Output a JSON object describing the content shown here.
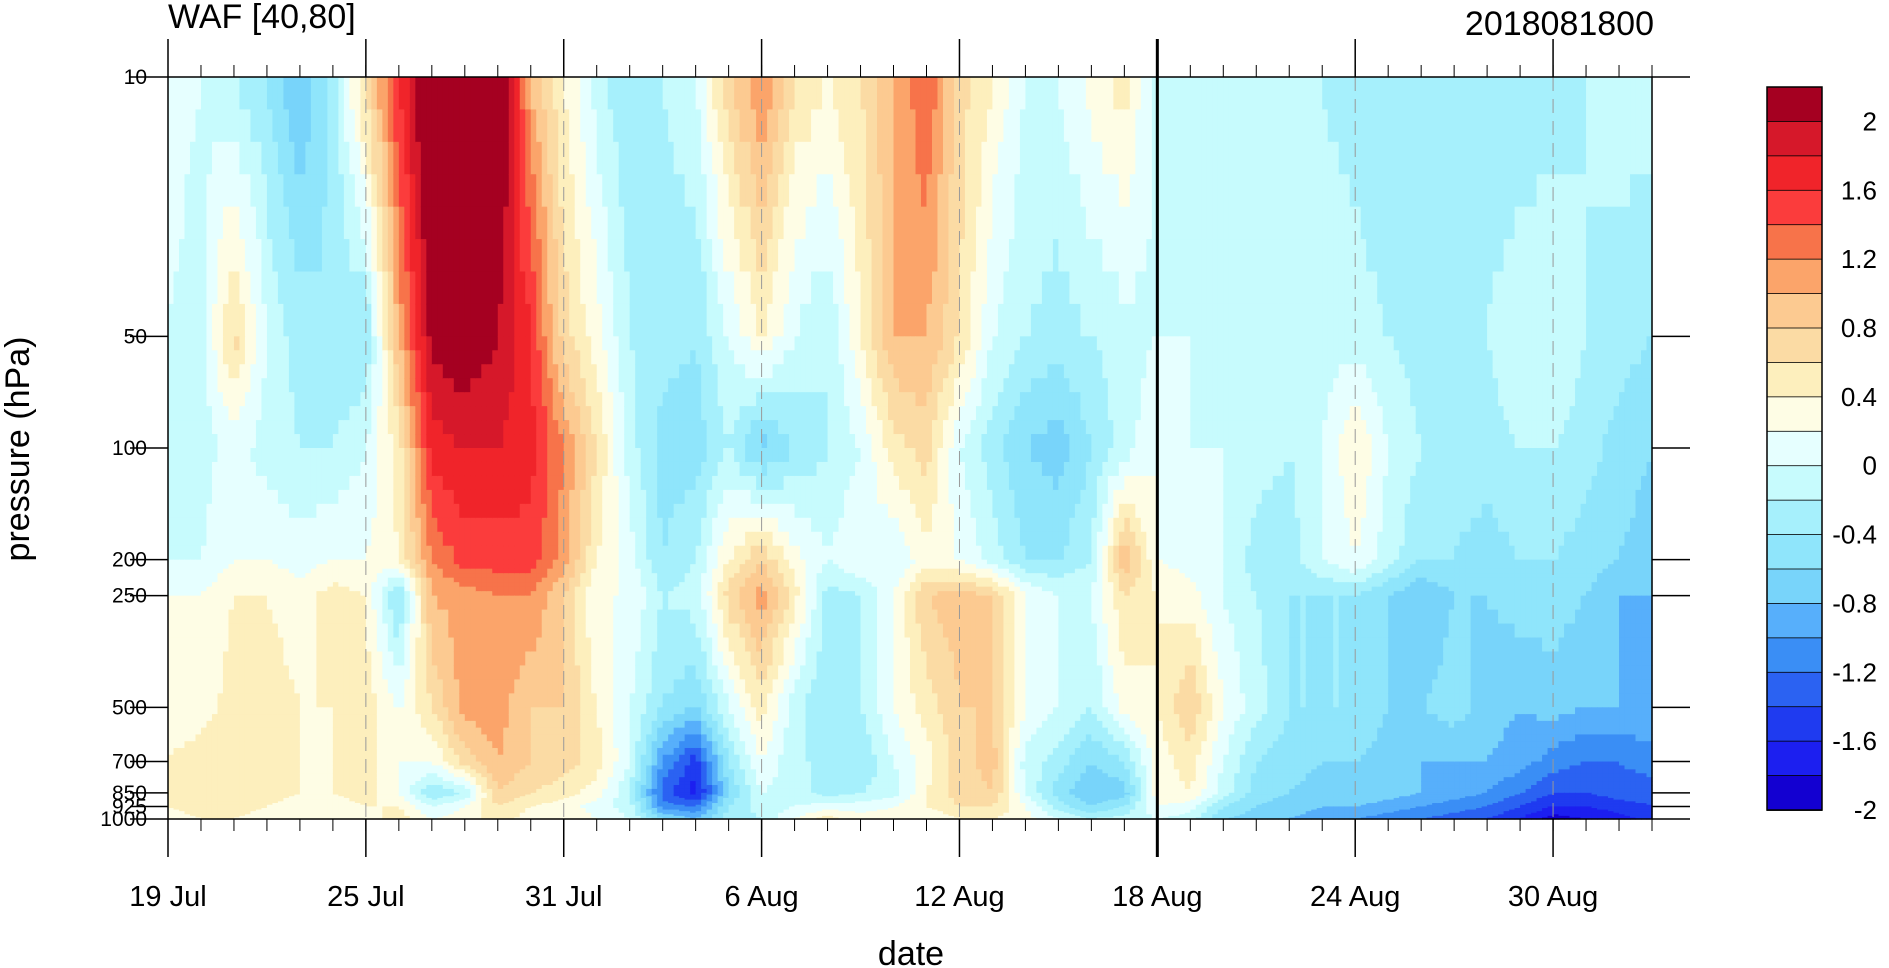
{
  "chart_data": {
    "type": "heatmap",
    "title_left": "WAF [40,80]",
    "title_right": "2018081800",
    "xlabel": "date",
    "ylabel": "pressure (hPa)",
    "x_dates": [
      "19 Jul",
      "20 Jul",
      "21 Jul",
      "22 Jul",
      "23 Jul",
      "24 Jul",
      "25 Jul",
      "26 Jul",
      "27 Jul",
      "28 Jul",
      "29 Jul",
      "30 Jul",
      "31 Jul",
      "1 Aug",
      "2 Aug",
      "3 Aug",
      "4 Aug",
      "5 Aug",
      "6 Aug",
      "7 Aug",
      "8 Aug",
      "9 Aug",
      "10 Aug",
      "11 Aug",
      "12 Aug",
      "13 Aug",
      "14 Aug",
      "15 Aug",
      "16 Aug",
      "17 Aug",
      "18 Aug",
      "19 Aug",
      "20 Aug",
      "21 Aug",
      "22 Aug",
      "23 Aug",
      "24 Aug",
      "25 Aug",
      "26 Aug",
      "27 Aug",
      "28 Aug",
      "29 Aug",
      "30 Aug",
      "31 Aug",
      "1 Sep",
      "2 Sep"
    ],
    "x_tick_labels": [
      "19 Jul",
      "25 Jul",
      "31 Jul",
      "6 Aug",
      "12 Aug",
      "18 Aug",
      "24 Aug",
      "30 Aug"
    ],
    "y_levels": [
      10,
      50,
      100,
      200,
      250,
      500,
      700,
      850,
      925,
      1000
    ],
    "y_tick_labels": [
      "10",
      "50",
      "100",
      "200",
      "250",
      "500",
      "700",
      "850",
      "925",
      "1000"
    ],
    "y_scale": "log",
    "analysis_marker": "18 Aug",
    "colorbar": {
      "levels": [
        -2.2,
        -2.0,
        -1.8,
        -1.6,
        -1.4,
        -1.2,
        -1.0,
        -0.8,
        -0.6,
        -0.4,
        -0.2,
        0,
        0.2,
        0.4,
        0.6,
        0.8,
        1.0,
        1.2,
        1.4,
        1.6,
        1.8,
        2.0,
        2.2
      ],
      "labels": [
        "2",
        "1.6",
        "1.2",
        "0.8",
        "0.4",
        "0",
        "-0.4",
        "-0.8",
        "-1.2",
        "-1.6",
        "-2"
      ],
      "colors_top_to_bottom": [
        "#a50021",
        "#d6182a",
        "#f0242a",
        "#fb3c3c",
        "#f7734a",
        "#fba46a",
        "#fcca91",
        "#fbdba4",
        "#fdefbd",
        "#fefde5",
        "#e6ffff",
        "#c7fbfd",
        "#a6f0fc",
        "#8fe5fb",
        "#78d4fa",
        "#57affb",
        "#3a8ef5",
        "#2b62f2",
        "#1f3bf0",
        "#1c1ff0",
        "#1300d1"
      ]
    },
    "grid_lines": "dashed vertical at labeled dates",
    "values_1000_to_10": [
      [
        0.1,
        0.2,
        0.2,
        0.2,
        0.1,
        0.0,
        -0.2,
        -0.2,
        -0.2,
        -0.1
      ],
      [
        0.2,
        0.3,
        0.3,
        0.3,
        0.1,
        0.0,
        -0.2,
        -0.3,
        -0.3,
        -0.2
      ],
      [
        0.2,
        0.3,
        0.4,
        0.4,
        0.3,
        0.2,
        0.0,
        -0.1,
        0.5,
        -0.4
      ],
      [
        0.1,
        0.2,
        0.3,
        0.3,
        0.3,
        0.2,
        0.0,
        -0.3,
        -0.2,
        -0.6
      ],
      [
        0.0,
        0.1,
        0.2,
        0.2,
        0.2,
        0.1,
        -0.1,
        -0.4,
        -0.5,
        -1.0
      ],
      [
        0.0,
        0.1,
        0.2,
        0.2,
        0.2,
        0.3,
        0.0,
        -0.4,
        -0.6,
        -0.5
      ],
      [
        0.1,
        0.2,
        0.3,
        0.3,
        0.3,
        0.2,
        0.0,
        -0.2,
        -0.6,
        0.5
      ],
      [
        0.3,
        0.2,
        0.0,
        0.0,
        0.0,
        -0.7,
        0.2,
        0.3,
        0.8,
        1.4
      ],
      [
        0.0,
        -0.2,
        -0.6,
        0.0,
        0.4,
        0.8,
        1.0,
        1.5,
        1.9,
        2.3
      ],
      [
        0.1,
        0.0,
        -0.4,
        0.5,
        0.9,
        0.9,
        1.3,
        1.6,
        2.0,
        2.4
      ],
      [
        0.3,
        0.4,
        0.6,
        0.8,
        0.9,
        1.0,
        1.3,
        1.6,
        1.8,
        2.3
      ],
      [
        0.1,
        0.2,
        0.4,
        0.6,
        0.6,
        1.0,
        1.3,
        1.5,
        1.4,
        0.8
      ],
      [
        0.2,
        0.1,
        0.3,
        0.5,
        0.6,
        0.6,
        0.9,
        1.0,
        0.5,
        0.2
      ],
      [
        0.0,
        -0.1,
        0.1,
        0.3,
        0.2,
        0.0,
        0.2,
        0.4,
        0.1,
        -0.3
      ],
      [
        -0.2,
        -0.3,
        -0.4,
        -0.2,
        -0.2,
        0.0,
        -0.1,
        -0.3,
        -0.4,
        -0.6
      ],
      [
        -0.8,
        -1.3,
        -1.5,
        -1.2,
        -0.6,
        -0.4,
        -0.6,
        -0.7,
        -0.5,
        -0.4
      ],
      [
        -1.0,
        -1.4,
        -1.9,
        -1.7,
        -0.8,
        -0.3,
        -0.4,
        -0.7,
        -0.6,
        -0.2
      ],
      [
        -0.5,
        -0.6,
        -0.8,
        -0.6,
        -0.2,
        0.5,
        0.2,
        -0.4,
        -0.2,
        0.6
      ],
      [
        -0.4,
        -0.3,
        -0.2,
        0.0,
        0.3,
        0.9,
        0.6,
        -0.9,
        0.2,
        1.0
      ],
      [
        0.0,
        -0.2,
        -0.3,
        -0.4,
        -0.3,
        0.3,
        0.1,
        -0.6,
        -0.2,
        0.4
      ],
      [
        0.3,
        -0.1,
        -0.5,
        -0.4,
        -0.6,
        -0.5,
        -0.2,
        -0.4,
        -0.4,
        0.2
      ],
      [
        0.1,
        -0.1,
        -0.4,
        -0.6,
        -0.4,
        -0.4,
        0.0,
        -0.2,
        0.2,
        0.4
      ],
      [
        0.1,
        0.0,
        -0.3,
        -0.2,
        0.0,
        0.0,
        -0.2,
        0.3,
        0.8,
        0.8
      ],
      [
        0.0,
        0.2,
        0.2,
        0.1,
        0.3,
        0.6,
        0.1,
        0.5,
        0.8,
        1.2
      ],
      [
        0.2,
        0.4,
        0.5,
        0.5,
        0.6,
        0.7,
        0.0,
        -0.2,
        0.4,
        0.5
      ],
      [
        0.2,
        0.4,
        0.6,
        0.7,
        0.6,
        0.6,
        -0.3,
        -0.5,
        -0.2,
        0.2
      ],
      [
        0.1,
        0.0,
        -0.2,
        -0.3,
        0.0,
        0.0,
        -0.6,
        -0.8,
        -0.4,
        -0.2
      ],
      [
        -0.2,
        -0.5,
        -0.7,
        -0.5,
        -0.2,
        -0.2,
        -0.6,
        -0.9,
        -0.5,
        -0.2
      ],
      [
        -0.4,
        -0.8,
        -1.0,
        -0.8,
        -0.4,
        -0.2,
        -0.4,
        -0.6,
        -0.4,
        0.1
      ],
      [
        -0.3,
        -0.6,
        -0.9,
        -0.6,
        0.1,
        0.4,
        0.8,
        -0.3,
        -0.3,
        0.3
      ],
      [
        -0.2,
        0.0,
        0.1,
        0.1,
        0.2,
        0.2,
        0.0,
        0.0,
        -0.2,
        -0.3
      ],
      [
        -0.3,
        -0.1,
        0.2,
        0.3,
        0.6,
        0.1,
        -0.1,
        -0.2,
        -0.2,
        -0.3
      ],
      [
        -0.8,
        -0.6,
        -0.3,
        -0.2,
        0.0,
        -0.2,
        -0.2,
        -0.2,
        -0.3,
        -0.3
      ],
      [
        -0.9,
        -0.8,
        -0.7,
        -0.6,
        -0.3,
        -0.4,
        -0.5,
        -0.3,
        -0.3,
        -0.3
      ],
      [
        -1.0,
        -0.9,
        -0.8,
        -0.7,
        -0.6,
        -0.6,
        -0.5,
        -0.4,
        -0.3,
        -0.3
      ],
      [
        -1.1,
        -1.0,
        -0.9,
        -0.8,
        -0.6,
        -0.6,
        -0.2,
        -0.2,
        -0.3,
        -0.4
      ],
      [
        -1.2,
        -1.0,
        -0.8,
        -0.8,
        -0.6,
        -0.6,
        0.0,
        0.2,
        -0.3,
        -0.5
      ],
      [
        -1.3,
        -1.1,
        -0.9,
        -0.9,
        -0.8,
        -0.8,
        -0.3,
        -0.2,
        -0.4,
        -0.6
      ],
      [
        -1.4,
        -1.2,
        -1.0,
        -1.0,
        -0.8,
        -1.0,
        -0.6,
        -0.4,
        -0.5,
        -0.6
      ],
      [
        -1.5,
        -1.3,
        -1.1,
        -1.0,
        -0.7,
        -0.8,
        -0.6,
        -0.5,
        -0.4,
        -0.6
      ],
      [
        -1.6,
        -1.4,
        -1.2,
        -1.0,
        -0.9,
        -0.8,
        -0.7,
        -0.5,
        -0.4,
        -0.6
      ],
      [
        -1.8,
        -1.6,
        -1.4,
        -1.1,
        -1.0,
        -0.7,
        -0.6,
        -0.4,
        -0.2,
        -0.6
      ],
      [
        -2.1,
        -1.8,
        -1.6,
        -1.3,
        -0.9,
        -0.7,
        -0.6,
        -0.4,
        -0.2,
        -0.5
      ],
      [
        -2.0,
        -1.8,
        -1.6,
        -1.4,
        -1.0,
        -0.8,
        -0.7,
        -0.5,
        -0.4,
        -0.4
      ],
      [
        -1.9,
        -1.7,
        -1.5,
        -1.4,
        -1.0,
        -1.0,
        -0.8,
        -0.7,
        -0.5,
        -0.3
      ],
      [
        -1.7,
        -1.6,
        -1.5,
        -1.3,
        -1.0,
        -1.0,
        -0.9,
        -0.8,
        -0.6,
        -0.3
      ]
    ]
  }
}
